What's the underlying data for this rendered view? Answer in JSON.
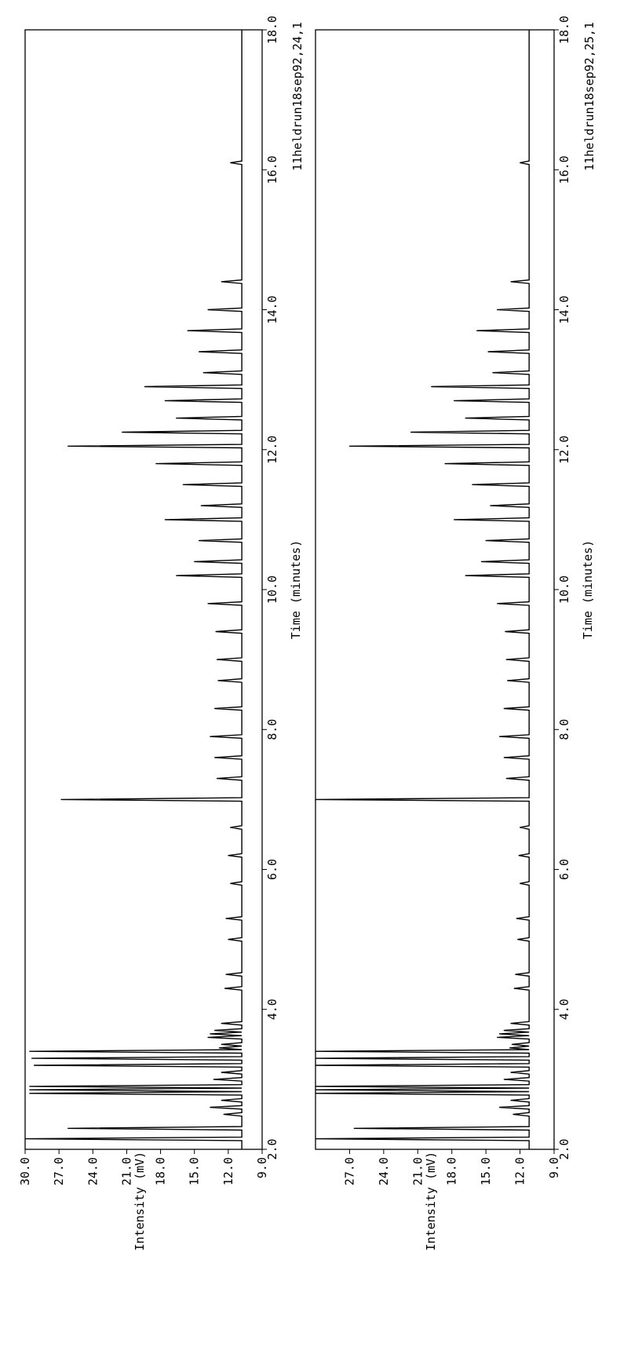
{
  "chart_data": [
    {
      "type": "line",
      "title": "11heldrun18sep92,24,1",
      "xlabel": "Time (minutes)",
      "ylabel": "Intensity (mV)",
      "xlim": [
        2.0,
        18.0
      ],
      "ylim": [
        9.0,
        30.0
      ],
      "x_ticks": [
        "2.0",
        "4.0",
        "6.0",
        "8.0",
        "10.0",
        "12.0",
        "14.0",
        "16.0",
        "18.0"
      ],
      "y_ticks": [
        "9.0",
        "12.0",
        "15.0",
        "18.0",
        "21.0",
        "24.0",
        "27.0",
        "30.0"
      ],
      "baseline": 10.8,
      "series": [
        {
          "values_x": [
            2.15,
            2.3,
            2.5,
            2.6,
            2.7,
            2.8,
            2.85,
            2.9,
            3.0,
            3.1,
            3.2,
            3.3,
            3.4,
            3.45,
            3.5,
            3.6,
            3.65,
            3.7,
            3.8,
            4.3,
            4.5,
            5.0,
            5.3,
            5.8,
            6.2,
            6.6,
            7.0,
            7.3,
            7.6,
            7.9,
            8.3,
            8.7,
            9.0,
            9.4,
            9.8,
            10.2,
            10.4,
            10.7,
            11.0,
            11.2,
            11.5,
            11.8,
            12.05,
            12.25,
            12.45,
            12.7,
            12.9,
            13.1,
            13.4,
            13.7,
            14.0,
            14.4,
            16.1
          ],
          "values_y": [
            30.0,
            26.2,
            12.4,
            13.6,
            12.6,
            29.6,
            29.6,
            29.6,
            13.3,
            12.6,
            29.2,
            29.4,
            29.6,
            12.8,
            12.6,
            13.8,
            13.6,
            13.2,
            12.6,
            12.3,
            12.2,
            12.0,
            12.2,
            11.8,
            12.0,
            11.8,
            26.8,
            13.0,
            13.2,
            13.6,
            13.2,
            12.9,
            13.0,
            13.1,
            13.8,
            16.6,
            15.0,
            14.6,
            17.6,
            14.4,
            16.0,
            18.4,
            26.2,
            21.4,
            16.6,
            17.6,
            19.4,
            14.2,
            14.6,
            15.6,
            13.8,
            12.6,
            11.8
          ]
        }
      ]
    },
    {
      "type": "line",
      "title": "11heldrun18sep92,25,1",
      "xlabel": "Time (minutes)",
      "ylabel": "Intensity (mV)",
      "xlim": [
        2.0,
        18.0
      ],
      "ylim": [
        9.0,
        30.0
      ],
      "x_ticks": [
        "2.0",
        "4.0",
        "6.0",
        "8.0",
        "10.0",
        "12.0",
        "14.0",
        "16.0",
        "18.0"
      ],
      "y_ticks": [
        "9.0",
        "12.0",
        "15.0",
        "18.0",
        "21.0",
        "24.0",
        "27.0"
      ],
      "baseline": 11.2,
      "series": [
        {
          "values_x": [
            2.15,
            2.3,
            2.5,
            2.6,
            2.7,
            2.8,
            2.85,
            2.9,
            3.0,
            3.1,
            3.2,
            3.3,
            3.4,
            3.45,
            3.5,
            3.6,
            3.65,
            3.7,
            3.8,
            4.3,
            4.5,
            5.0,
            5.3,
            5.8,
            6.2,
            6.6,
            7.0,
            7.3,
            7.6,
            7.9,
            8.3,
            8.7,
            9.0,
            9.4,
            9.8,
            10.2,
            10.4,
            10.7,
            11.0,
            11.2,
            11.5,
            11.8,
            12.05,
            12.25,
            12.45,
            12.7,
            12.9,
            13.1,
            13.4,
            13.7,
            14.0,
            14.4,
            16.1
          ],
          "values_y": [
            30.0,
            26.6,
            12.6,
            13.8,
            12.8,
            30.0,
            30.0,
            30.0,
            13.4,
            12.8,
            30.0,
            30.0,
            30.0,
            12.9,
            12.7,
            14.0,
            13.8,
            13.4,
            12.8,
            12.5,
            12.4,
            12.2,
            12.3,
            12.0,
            12.1,
            12.0,
            30.0,
            13.2,
            13.4,
            13.8,
            13.4,
            13.1,
            13.2,
            13.3,
            14.0,
            16.8,
            15.4,
            15.0,
            17.8,
            14.6,
            16.2,
            18.6,
            27.0,
            21.6,
            16.8,
            17.8,
            19.8,
            14.4,
            14.8,
            15.8,
            14.0,
            12.8,
            12.0
          ]
        }
      ]
    }
  ]
}
